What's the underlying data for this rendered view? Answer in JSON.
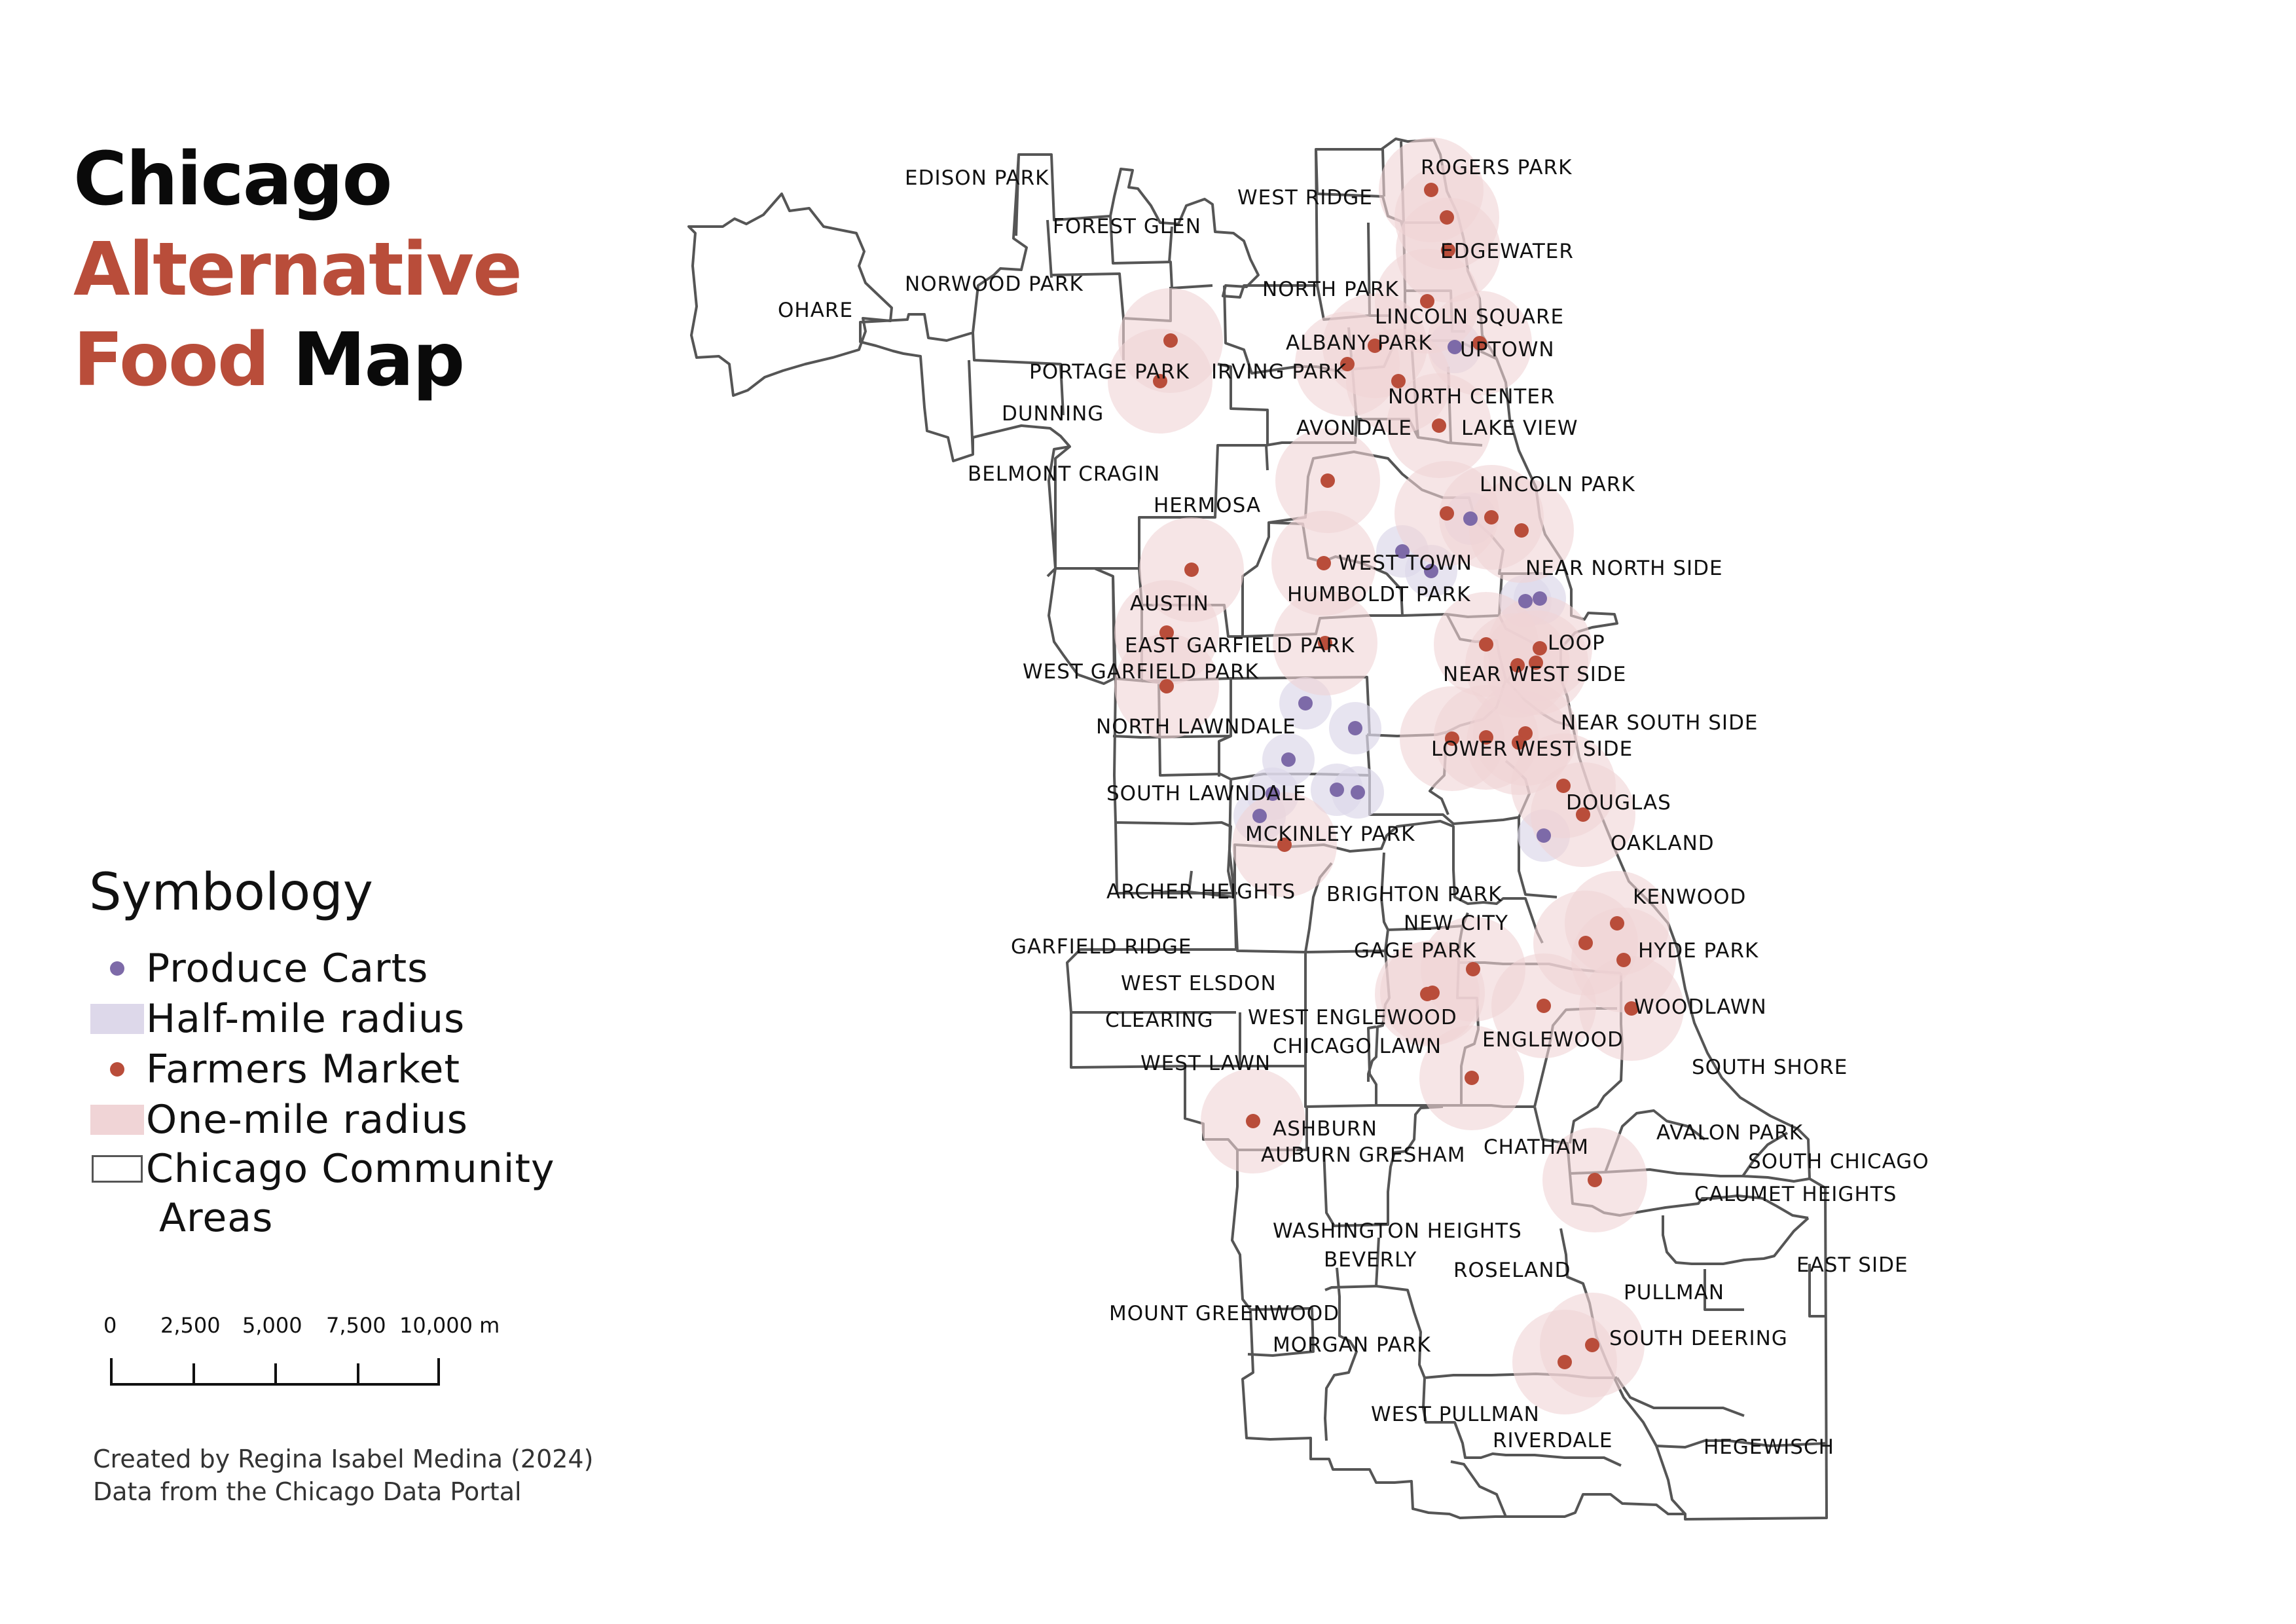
{
  "title": {
    "line1": "Chicago",
    "line2": "Alternative",
    "line3_accent": "Food",
    "line3_black": "Map"
  },
  "colors": {
    "accent": "#b94d3a",
    "produce_cart": "#7d6aa8",
    "farmers_market": "#b94d3a",
    "half_mile_fill": "#ddd8ea",
    "one_mile_fill": "#f0d4d6",
    "boundary": "#555555"
  },
  "legend": {
    "heading": "Symbology",
    "items": [
      {
        "symbol": "purple-dot",
        "label": "Produce Carts"
      },
      {
        "symbol": "lavender-patch",
        "label": "Half-mile radius"
      },
      {
        "symbol": "red-dot",
        "label": "Farmers Market"
      },
      {
        "symbol": "pink-patch",
        "label": "One-mile radius"
      },
      {
        "symbol": "outline-rect",
        "label": "Chicago Community"
      }
    ],
    "wrap": "Areas"
  },
  "scale_bar": {
    "labels": [
      "0",
      "2,500",
      "5,000",
      "7,500",
      "10,000 m"
    ]
  },
  "credits": {
    "line1": "Created by Regina Isabel Medina (2024)",
    "line2": "Data from the Chicago Data Portal"
  },
  "community_areas": [
    "EDISON PARK",
    "FOREST GLEN",
    "WEST RIDGE",
    "ROGERS PARK",
    "EDGEWATER",
    "OHARE",
    "NORWOOD PARK",
    "NORTH PARK",
    "LINCOLN SQUARE",
    "ALBANY PARK",
    "UPTOWN",
    "PORTAGE PARK",
    "IRVING PARK",
    "NORTH CENTER",
    "DUNNING",
    "AVONDALE",
    "LAKE VIEW",
    "BELMONT CRAGIN",
    "LINCOLN PARK",
    "HERMOSA",
    "WEST TOWN",
    "NEAR NORTH SIDE",
    "AUSTIN",
    "HUMBOLDT PARK",
    "EAST GARFIELD PARK",
    "LOOP",
    "WEST GARFIELD PARK",
    "NEAR WEST SIDE",
    "NORTH LAWNDALE",
    "NEAR SOUTH SIDE",
    "LOWER WEST SIDE",
    "SOUTH LAWNDALE",
    "DOUGLAS",
    "MCKINLEY PARK",
    "OAKLAND",
    "ARCHER HEIGHTS",
    "BRIGHTON PARK",
    "KENWOOD",
    "NEW CITY",
    "GARFIELD RIDGE",
    "GAGE PARK",
    "HYDE PARK",
    "WEST ELSDON",
    "WOODLAWN",
    "CLEARING",
    "WEST ENGLEWOOD",
    "ENGLEWOOD",
    "CHICAGO LAWN",
    "WEST LAWN",
    "SOUTH SHORE",
    "ASHBURN",
    "AVALON PARK",
    "CHATHAM",
    "AUBURN GRESHAM",
    "SOUTH CHICAGO",
    "CALUMET HEIGHTS",
    "WASHINGTON HEIGHTS",
    "BEVERLY",
    "ROSELAND",
    "EAST SIDE",
    "PULLMAN",
    "MOUNT GREENWOOD",
    "SOUTH DEERING",
    "MORGAN PARK",
    "WEST PULLMAN",
    "RIVERDALE",
    "HEGEWISCH"
  ]
}
